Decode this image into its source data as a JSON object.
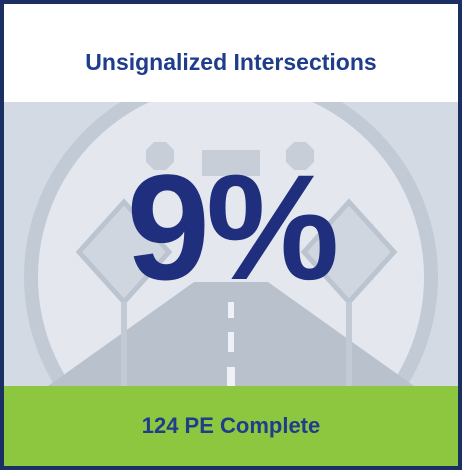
{
  "header": {
    "title": "Unsignalized Intersections"
  },
  "stat": {
    "value": "9%"
  },
  "footer": {
    "label": "124 PE Complete"
  }
}
